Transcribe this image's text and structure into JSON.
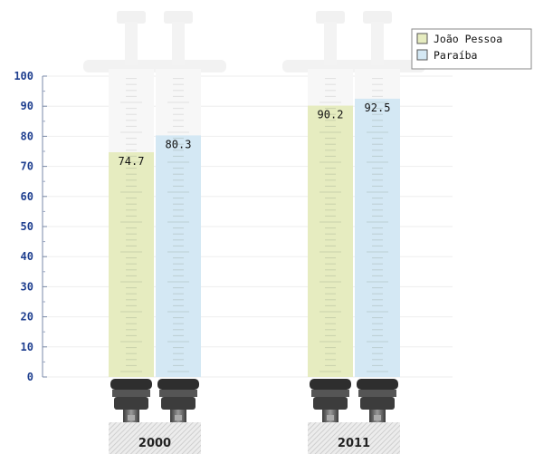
{
  "chart_data": {
    "type": "bar",
    "categories": [
      "2000",
      "2011"
    ],
    "series": [
      {
        "name": "João Pessoa",
        "values": [
          74.7,
          90.2
        ],
        "labels": [
          "74.7",
          "90.2"
        ],
        "color": "#e6ecc0"
      },
      {
        "name": "Paraíba",
        "values": [
          80.3,
          92.5
        ],
        "labels": [
          "80.3",
          "92.5"
        ],
        "color": "#d4e8f4"
      }
    ],
    "ylim": [
      0,
      100
    ],
    "yticks": [
      "0",
      "10",
      "20",
      "30",
      "40",
      "50",
      "60",
      "70",
      "80",
      "90",
      "100"
    ],
    "legend": "top-right",
    "grid": true,
    "style": "syringe"
  }
}
